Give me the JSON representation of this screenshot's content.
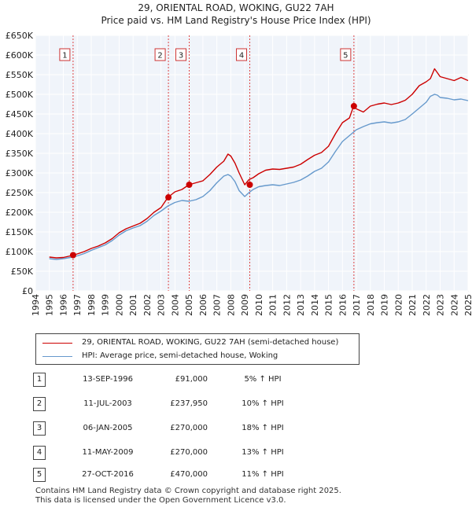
{
  "title_line1": "29, ORIENTAL ROAD, WOKING, GU22 7AH",
  "title_line2": "Price paid vs. HM Land Registry's House Price Index (HPI)",
  "chart_data": {
    "type": "line",
    "title": "29, ORIENTAL ROAD, WOKING, GU22 7AH — Price paid vs. HM Land Registry's House Price Index (HPI)",
    "xlim": [
      1994,
      2025
    ],
    "ylim": [
      0,
      650000
    ],
    "x_ticks": [
      "1994",
      "1995",
      "1996",
      "1997",
      "1998",
      "1999",
      "2000",
      "2001",
      "2002",
      "2003",
      "2004",
      "2005",
      "2006",
      "2007",
      "2008",
      "2009",
      "2010",
      "2011",
      "2012",
      "2013",
      "2014",
      "2015",
      "2016",
      "2017",
      "2018",
      "2019",
      "2020",
      "2021",
      "2022",
      "2023",
      "2024",
      "2025"
    ],
    "y_ticks": [
      {
        "value": 0,
        "label": "£0"
      },
      {
        "value": 50000,
        "label": "£50K"
      },
      {
        "value": 100000,
        "label": "£100K"
      },
      {
        "value": 150000,
        "label": "£150K"
      },
      {
        "value": 200000,
        "label": "£200K"
      },
      {
        "value": 250000,
        "label": "£250K"
      },
      {
        "value": 300000,
        "label": "£300K"
      },
      {
        "value": 350000,
        "label": "£350K"
      },
      {
        "value": 400000,
        "label": "£400K"
      },
      {
        "value": 450000,
        "label": "£450K"
      },
      {
        "value": 500000,
        "label": "£500K"
      },
      {
        "value": 550000,
        "label": "£550K"
      },
      {
        "value": 600000,
        "label": "£600K"
      },
      {
        "value": 650000,
        "label": "£650K"
      }
    ],
    "grid": true,
    "series": [
      {
        "name": "29, ORIENTAL ROAD, WOKING, GU22 7AH (semi-detached house)",
        "color": "#cc0000",
        "x": [
          1995.0,
          1995.5,
          1996.0,
          1996.5,
          1996.7,
          1997.0,
          1997.5,
          1998.0,
          1998.5,
          1999.0,
          1999.5,
          2000.0,
          2000.5,
          2001.0,
          2001.5,
          2002.0,
          2002.5,
          2003.0,
          2003.5,
          2004.0,
          2004.5,
          2005.0,
          2005.5,
          2006.0,
          2006.5,
          2007.0,
          2007.5,
          2007.8,
          2008.0,
          2008.3,
          2008.6,
          2009.0,
          2009.3,
          2009.6,
          2010.0,
          2010.5,
          2011.0,
          2011.5,
          2012.0,
          2012.5,
          2013.0,
          2013.5,
          2014.0,
          2014.5,
          2015.0,
          2015.5,
          2016.0,
          2016.5,
          2016.8,
          2017.0,
          2017.5,
          2018.0,
          2018.5,
          2019.0,
          2019.5,
          2020.0,
          2020.5,
          2021.0,
          2021.5,
          2022.0,
          2022.3,
          2022.6,
          2022.8,
          2023.0,
          2023.5,
          2024.0,
          2024.5,
          2025.0
        ],
        "values": [
          86000,
          84000,
          85000,
          89000,
          91000,
          94000,
          100000,
          108000,
          114000,
          122000,
          133000,
          148000,
          158000,
          165000,
          172000,
          184000,
          200000,
          212000,
          238000,
          252000,
          258000,
          270000,
          275000,
          280000,
          296000,
          315000,
          330000,
          348000,
          343000,
          325000,
          300000,
          270000,
          283000,
          288000,
          298000,
          307000,
          310000,
          309000,
          312000,
          315000,
          322000,
          334000,
          345000,
          352000,
          368000,
          400000,
          428000,
          440000,
          470000,
          463000,
          455000,
          470000,
          475000,
          478000,
          474000,
          478000,
          485000,
          500000,
          522000,
          532000,
          540000,
          565000,
          555000,
          545000,
          540000,
          535000,
          543000,
          535000
        ]
      },
      {
        "name": "HPI: Average price, semi-detached house, Woking",
        "color": "#6699cc",
        "x": [
          1995.0,
          1995.5,
          1996.0,
          1996.5,
          1997.0,
          1997.5,
          1998.0,
          1998.5,
          1999.0,
          1999.5,
          2000.0,
          2000.5,
          2001.0,
          2001.5,
          2002.0,
          2002.5,
          2003.0,
          2003.5,
          2004.0,
          2004.5,
          2005.0,
          2005.5,
          2006.0,
          2006.5,
          2007.0,
          2007.5,
          2007.8,
          2008.0,
          2008.3,
          2008.6,
          2009.0,
          2009.3,
          2009.6,
          2010.0,
          2010.5,
          2011.0,
          2011.5,
          2012.0,
          2012.5,
          2013.0,
          2013.5,
          2014.0,
          2014.5,
          2015.0,
          2015.5,
          2016.0,
          2016.5,
          2017.0,
          2017.5,
          2018.0,
          2018.5,
          2019.0,
          2019.5,
          2020.0,
          2020.5,
          2021.0,
          2021.5,
          2022.0,
          2022.3,
          2022.6,
          2022.8,
          2023.0,
          2023.5,
          2024.0,
          2024.5,
          2025.0
        ],
        "values": [
          82000,
          80000,
          82000,
          85000,
          89000,
          95000,
          103000,
          110000,
          117000,
          128000,
          142000,
          153000,
          160000,
          166000,
          177000,
          192000,
          203000,
          216000,
          225000,
          230000,
          228000,
          232000,
          240000,
          255000,
          275000,
          292000,
          296000,
          292000,
          278000,
          255000,
          240000,
          250000,
          258000,
          265000,
          268000,
          270000,
          268000,
          272000,
          276000,
          282000,
          292000,
          304000,
          312000,
          328000,
          355000,
          380000,
          395000,
          410000,
          418000,
          425000,
          428000,
          430000,
          427000,
          430000,
          436000,
          450000,
          465000,
          480000,
          495000,
          500000,
          498000,
          492000,
          490000,
          486000,
          488000,
          484000
        ]
      }
    ],
    "sales": [
      {
        "n": "1",
        "x": 1996.7,
        "value": 91000
      },
      {
        "n": "2",
        "x": 2003.53,
        "value": 237950
      },
      {
        "n": "3",
        "x": 2005.02,
        "value": 270000
      },
      {
        "n": "4",
        "x": 2009.36,
        "value": 270000
      },
      {
        "n": "5",
        "x": 2016.82,
        "value": 470000
      }
    ]
  },
  "legend": {
    "red_label": "29, ORIENTAL ROAD, WOKING, GU22 7AH (semi-detached house)",
    "blue_label": "HPI: Average price, semi-detached house, Woking"
  },
  "table": [
    {
      "n": "1",
      "date": "13-SEP-1996",
      "price": "£91,000",
      "hpi": "5% ↑ HPI"
    },
    {
      "n": "2",
      "date": "11-JUL-2003",
      "price": "£237,950",
      "hpi": "10% ↑ HPI"
    },
    {
      "n": "3",
      "date": "06-JAN-2005",
      "price": "£270,000",
      "hpi": "18% ↑ HPI"
    },
    {
      "n": "4",
      "date": "11-MAY-2009",
      "price": "£270,000",
      "hpi": "13% ↑ HPI"
    },
    {
      "n": "5",
      "date": "27-OCT-2016",
      "price": "£470,000",
      "hpi": "11% ↑ HPI"
    }
  ],
  "footer": {
    "line1": "Contains HM Land Registry data © Crown copyright and database right 2025.",
    "line2": "This data is licensed under the Open Government Licence v3.0."
  }
}
